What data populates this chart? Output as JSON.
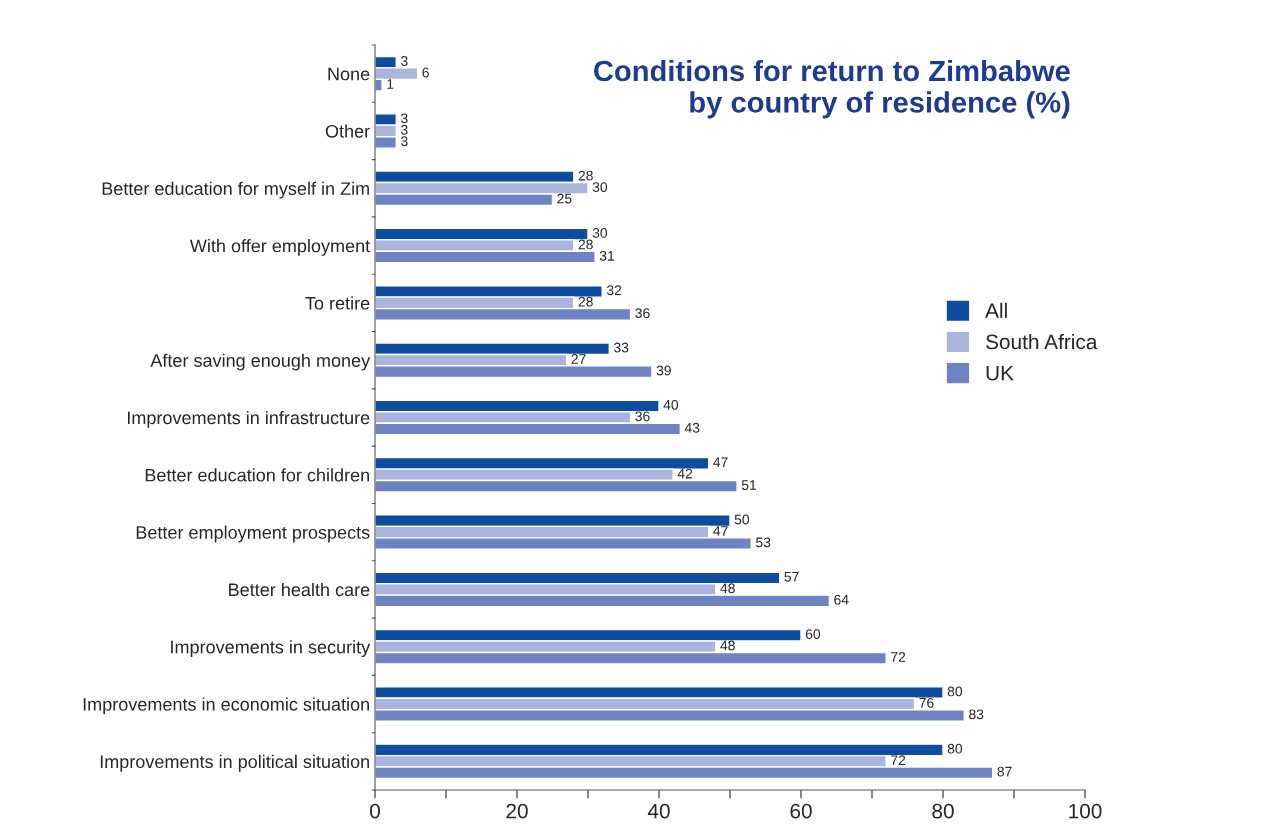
{
  "chart_data": {
    "type": "bar",
    "orientation": "horizontal",
    "title": "Conditions for return to Zimbabwe\nby country of residence (%)",
    "categories": [
      "None",
      "Other",
      "Better education for myself in Zim",
      "With offer employment",
      "To retire",
      "After saving enough money",
      "Improvements in infrastructure",
      "Better education for children",
      "Better employment prospects",
      "Better health care",
      "Improvements in security",
      "Improvements in economic situation",
      "Improvements in political situation"
    ],
    "series": [
      {
        "name": "All",
        "color": "#0d4c9e",
        "values": [
          3,
          3,
          28,
          30,
          32,
          33,
          40,
          47,
          50,
          57,
          60,
          80,
          80
        ]
      },
      {
        "name": "South Africa",
        "color": "#aab4dc",
        "values": [
          6,
          3,
          30,
          28,
          28,
          27,
          36,
          42,
          47,
          48,
          48,
          76,
          72
        ]
      },
      {
        "name": "UK",
        "color": "#6f82c2",
        "values": [
          1,
          3,
          25,
          31,
          36,
          39,
          43,
          51,
          53,
          64,
          72,
          83,
          87
        ]
      }
    ],
    "xlim": [
      0,
      100
    ],
    "xticks": [
      0,
      {
        "value": 10,
        "label": null
      },
      20,
      {
        "value": 30,
        "label": null
      },
      40,
      {
        "value": 50,
        "label": null
      },
      60,
      {
        "value": 70,
        "label": null
      },
      80,
      {
        "value": 90,
        "label": null
      },
      100
    ],
    "data_labels": true,
    "legend": "right",
    "grid": false
  }
}
